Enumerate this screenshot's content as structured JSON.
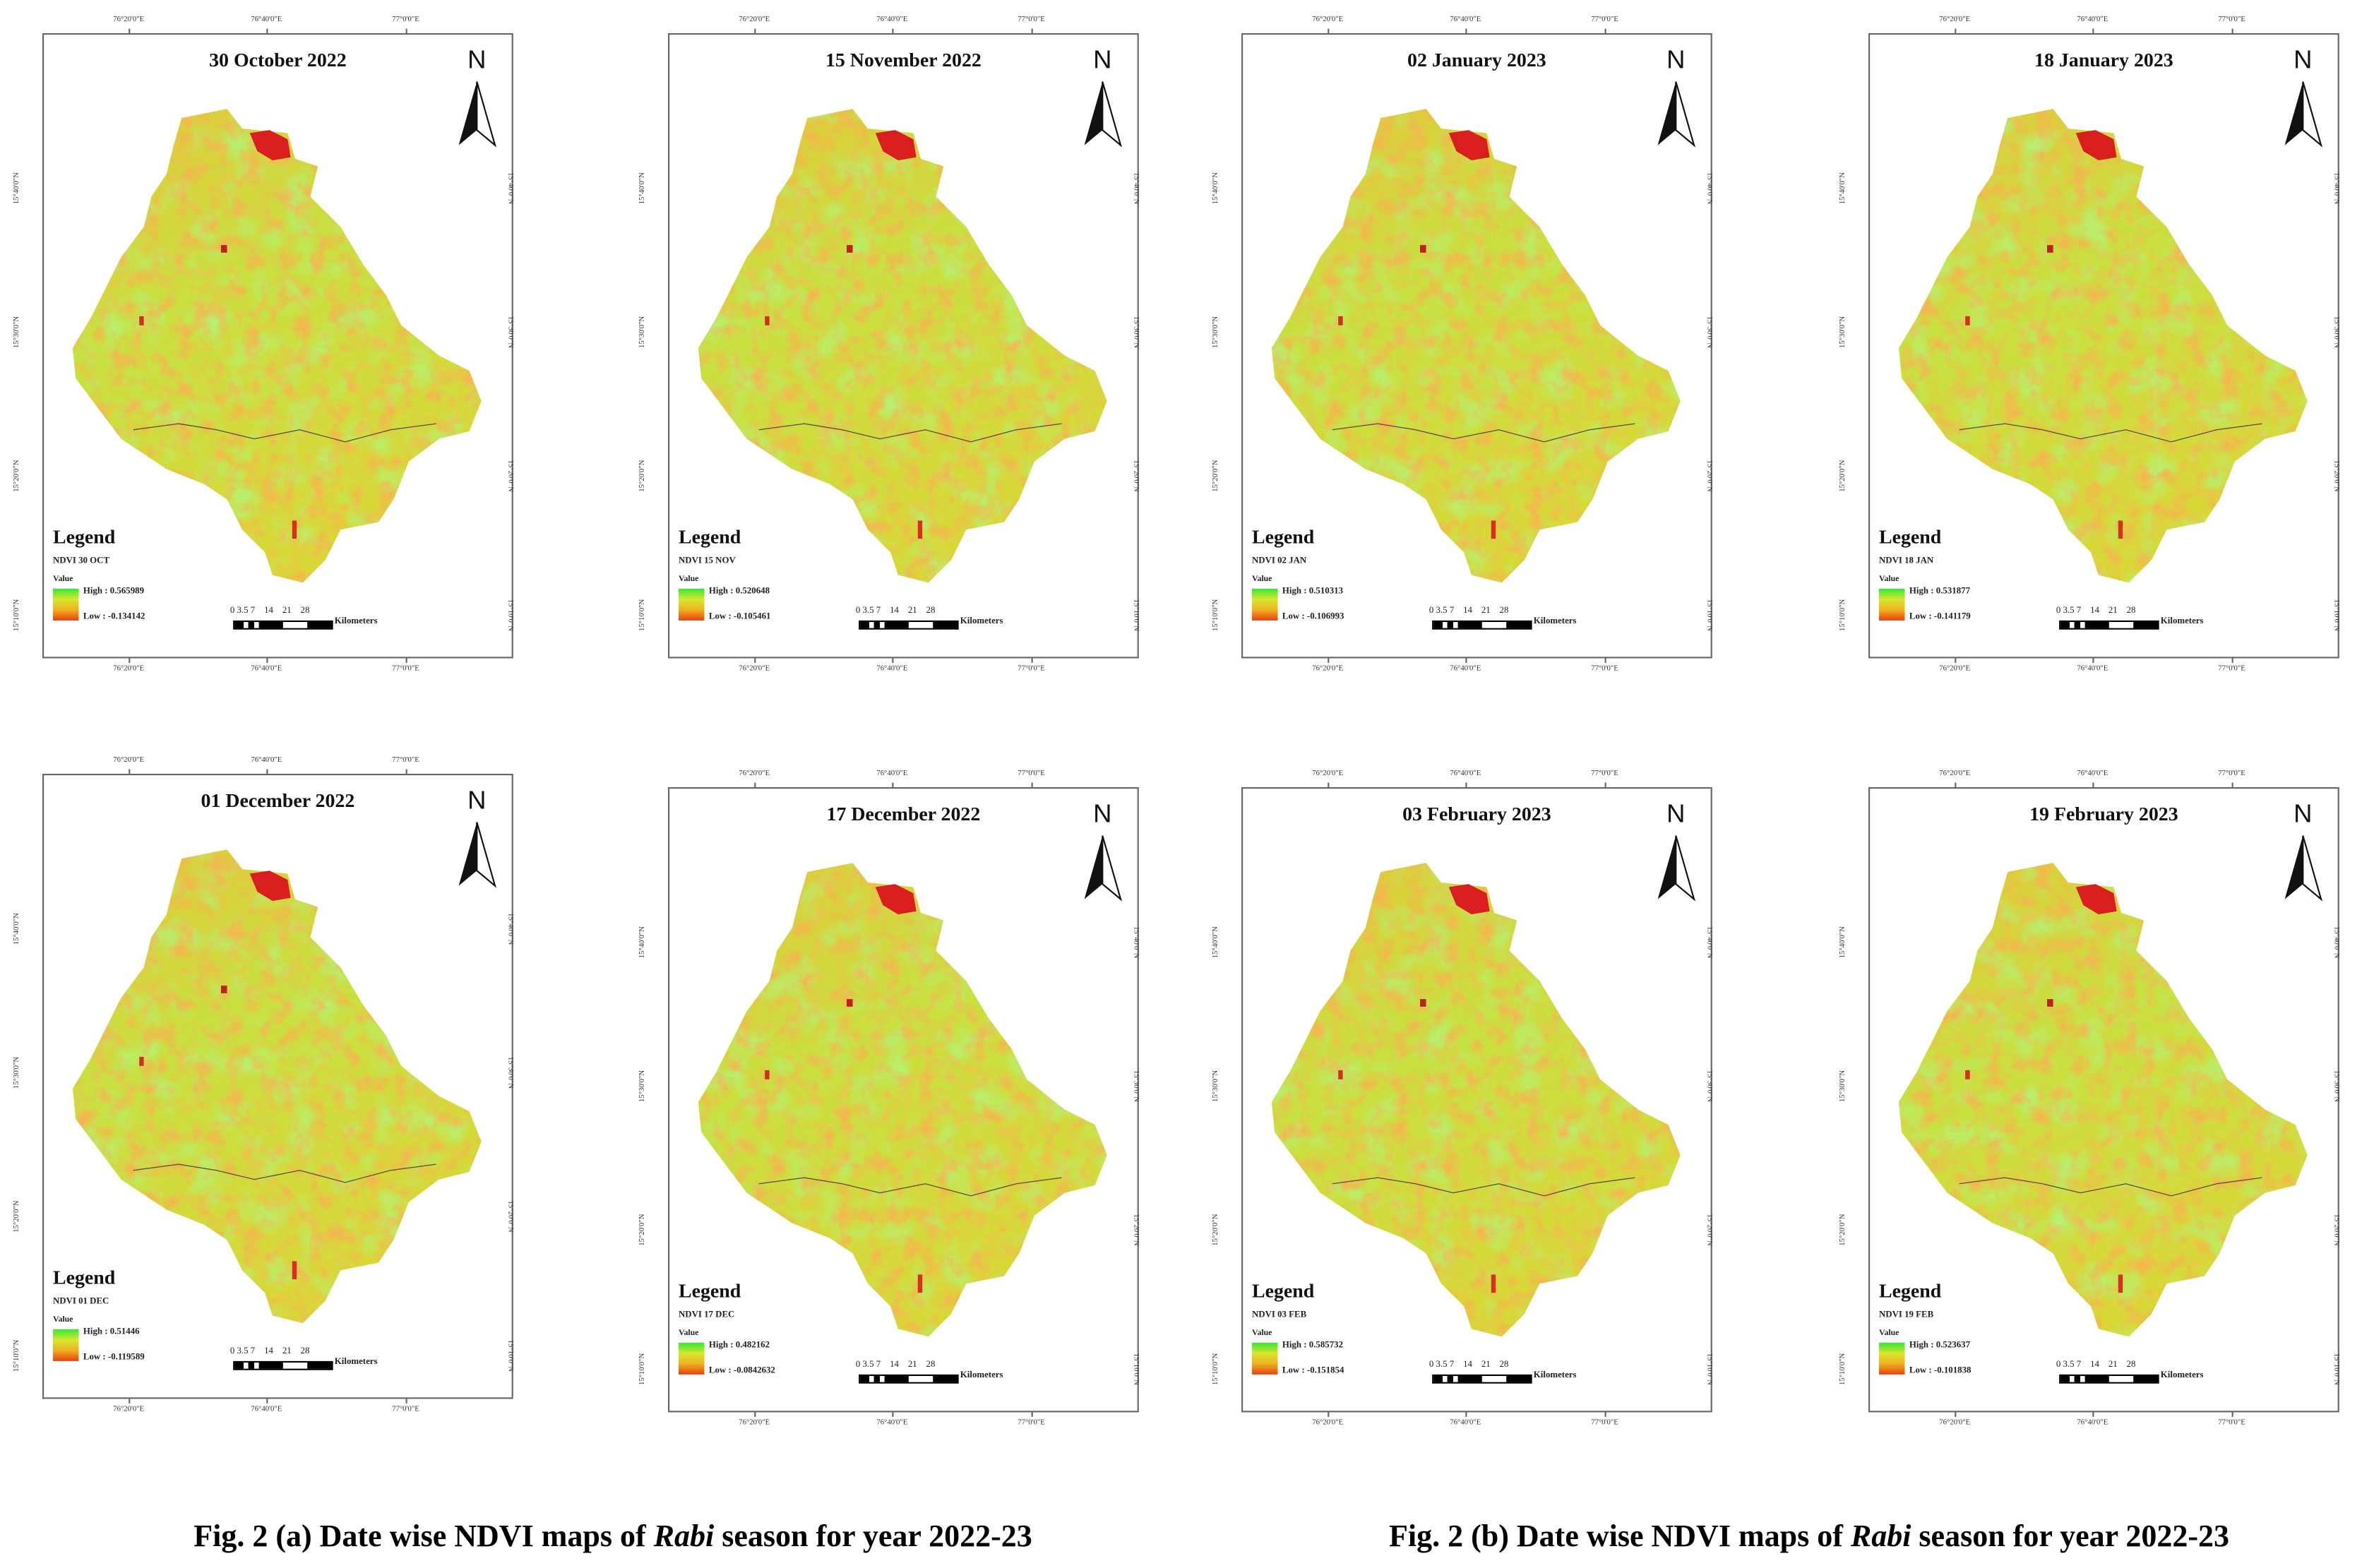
{
  "maps": [
    {
      "title": "30 October 2022",
      "legend_name": "NDVI 30 OCT",
      "high": "High : 0.565989",
      "low": "Low : -0.134142",
      "high_value": 0.565989,
      "low_value": -0.134142
    },
    {
      "title": "15 November 2022",
      "legend_name": "NDVI 15 NOV",
      "high": "High : 0.520648",
      "low": "Low : -0.105461",
      "high_value": 0.520648,
      "low_value": -0.105461
    },
    {
      "title": "02 January 2023",
      "legend_name": "NDVI 02 JAN",
      "high": "High : 0.510313",
      "low": "Low : -0.106993",
      "high_value": 0.510313,
      "low_value": -0.106993
    },
    {
      "title": "18 January 2023",
      "legend_name": "NDVI 18 JAN",
      "high": "High : 0.531877",
      "low": "Low : -0.141179",
      "high_value": 0.531877,
      "low_value": -0.141179
    },
    {
      "title": "01 December 2022",
      "legend_name": "NDVI 01 DEC",
      "high": "High : 0.51446",
      "low": "Low : -0.119589",
      "high_value": 0.51446,
      "low_value": -0.119589
    },
    {
      "title": "17 December 2022",
      "legend_name": "NDVI 17 DEC",
      "high": "High : 0.482162",
      "low": "Low : -0.0842632",
      "high_value": 0.482162,
      "low_value": -0.0842632
    },
    {
      "title": "03 February 2023",
      "legend_name": "NDVI 03 FEB",
      "high": "High : 0.585732",
      "low": "Low : -0.151854",
      "high_value": 0.585732,
      "low_value": -0.151854
    },
    {
      "title": "19 February 2023",
      "legend_name": "NDVI 19 FEB",
      "high": "High : 0.523637",
      "low": "Low : -0.101838",
      "high_value": 0.523637,
      "low_value": -0.101838
    }
  ],
  "common": {
    "north_label": "N",
    "legend_title": "Legend",
    "value_label": "Value",
    "scale_labels": "0 3.5 7    14    21    28",
    "scale_unit": "Kilometers",
    "longitudes": [
      "76°20'0\"E",
      "76°40'0\"E",
      "77°0'0\"E"
    ],
    "latitudes": [
      "15°40'0\"N",
      "15°30'0\"N",
      "15°20'0\"N",
      "15°10'0\"N"
    ],
    "ramp_colors": [
      "#33e833",
      "#d8e830",
      "#f0b020",
      "#e84010"
    ]
  },
  "captions": {
    "a_prefix": "Fig. 2 (a) Date wise NDVI maps of ",
    "b_prefix": "Fig. 2 (b) Date wise NDVI maps of ",
    "italic": "Rabi",
    "suffix": " season for year 2022-23"
  }
}
